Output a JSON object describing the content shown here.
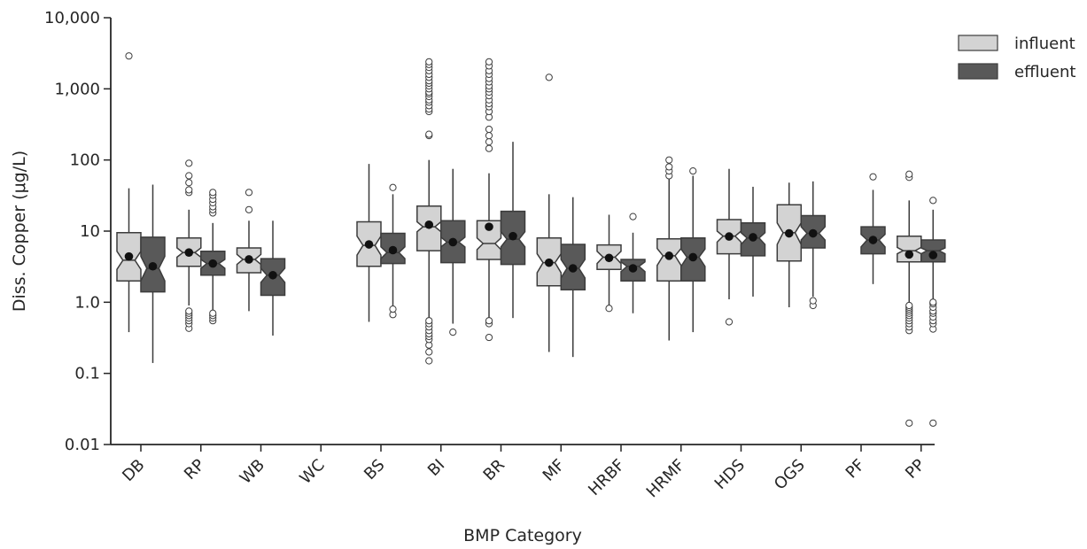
{
  "chart_data": {
    "type": "boxplot",
    "title": "",
    "xlabel": "BMP Category",
    "ylabel": "Diss. Copper (μg/L)",
    "yscale": "log",
    "ylim": [
      0.01,
      10000
    ],
    "yticks": [
      0.01,
      0.1,
      1,
      10,
      100,
      1000,
      10000
    ],
    "ytick_labels": [
      "0.01",
      "0.1",
      "1.0",
      "10",
      "100",
      "1,000",
      "10,000"
    ],
    "grid": false,
    "legend_position": "top-right",
    "categories": [
      "DB",
      "RP",
      "WB",
      "WC",
      "BS",
      "BI",
      "BR",
      "MF",
      "HRBF",
      "HRMF",
      "HDS",
      "OGS",
      "PF",
      "PP"
    ],
    "series": [
      {
        "name": "influent",
        "color": "#d3d3d3",
        "boxes": [
          {
            "q1": 2.0,
            "med": 3.9,
            "q3": 9.5,
            "notch": [
              2.9,
              5.2
            ],
            "mean": 4.4,
            "wlo": 0.38,
            "whi": 40,
            "fliers": [
              2900
            ]
          },
          {
            "q1": 3.2,
            "med": 5.0,
            "q3": 8.0,
            "notch": [
              4.3,
              5.8
            ],
            "mean": 5.0,
            "wlo": 0.9,
            "whi": 20,
            "fliers": [
              0.43,
              0.5,
              0.55,
              0.6,
              0.65,
              0.7,
              0.75,
              35,
              38,
              48,
              60,
              90
            ]
          },
          {
            "q1": 2.6,
            "med": 4.0,
            "q3": 5.8,
            "notch": [
              3.4,
              4.7
            ],
            "mean": 4.0,
            "wlo": 0.75,
            "whi": 14,
            "fliers": [
              20,
              35
            ]
          },
          null,
          {
            "q1": 3.2,
            "med": 6.3,
            "q3": 13.5,
            "notch": [
              4.6,
              8.5
            ],
            "mean": 6.5,
            "wlo": 0.53,
            "whi": 88,
            "fliers": []
          },
          {
            "q1": 5.3,
            "med": 11.5,
            "q3": 22.5,
            "notch": [
              9.8,
              13.5
            ],
            "mean": 12.3,
            "wlo": 0.6,
            "whi": 100,
            "fliers": [
              0.15,
              0.2,
              0.25,
              0.3,
              0.33,
              0.36,
              0.4,
              0.45,
              0.5,
              0.55,
              220,
              230,
              480,
              520,
              580,
              650,
              700,
              780,
              850,
              900,
              1000,
              1100,
              1200,
              1300,
              1450,
              1600,
              1800,
              2000,
              2200,
              2400
            ]
          },
          {
            "q1": 4.0,
            "med": 6.7,
            "q3": 14.0,
            "notch": [
              5.5,
              8.0
            ],
            "mean": 11.5,
            "wlo": 0.6,
            "whi": 65,
            "fliers": [
              0.32,
              0.5,
              0.55,
              145,
              180,
              220,
              270,
              400,
              480,
              560,
              620,
              700,
              800,
              900,
              1000,
              1100,
              1250,
              1400,
              1600,
              1800,
              2100,
              2400
            ]
          },
          {
            "q1": 1.7,
            "med": 3.6,
            "q3": 8.0,
            "notch": [
              2.6,
              4.8
            ],
            "mean": 3.6,
            "wlo": 0.2,
            "whi": 33,
            "fliers": [
              1450
            ]
          },
          {
            "q1": 2.9,
            "med": 4.3,
            "q3": 6.4,
            "notch": [
              3.5,
              5.2
            ],
            "mean": 4.2,
            "wlo": 0.82,
            "whi": 17,
            "fliers": [
              0.82
            ]
          },
          {
            "q1": 2.0,
            "med": 4.5,
            "q3": 7.8,
            "notch": [
              3.3,
              5.7
            ],
            "mean": 4.5,
            "wlo": 0.29,
            "whi": 55,
            "fliers": [
              60,
              70,
              80,
              100
            ]
          },
          {
            "q1": 4.8,
            "med": 8.5,
            "q3": 14.5,
            "notch": [
              7.0,
              10.0
            ],
            "mean": 8.4,
            "wlo": 1.1,
            "whi": 75,
            "fliers": [
              0.53
            ]
          },
          {
            "q1": 3.8,
            "med": 9.5,
            "q3": 23.5,
            "notch": [
              6.5,
              13.0
            ],
            "mean": 9.3,
            "wlo": 0.85,
            "whi": 48,
            "fliers": []
          },
          null,
          {
            "q1": 3.7,
            "med": 5.3,
            "q3": 8.5,
            "notch": [
              4.8,
              5.9
            ],
            "mean": 4.7,
            "wlo": 1.0,
            "whi": 27,
            "fliers": [
              0.02,
              0.4,
              0.45,
              0.5,
              0.55,
              0.6,
              0.65,
              0.7,
              0.75,
              0.8,
              0.85,
              0.9,
              57,
              63
            ]
          }
        ]
      },
      {
        "name": "effluent",
        "color": "#595959",
        "boxes": [
          {
            "q1": 1.4,
            "med": 3.0,
            "q3": 8.2,
            "notch": [
              2.0,
              4.4
            ],
            "mean": 3.2,
            "wlo": 0.14,
            "whi": 45,
            "fliers": []
          },
          {
            "q1": 2.4,
            "med": 3.5,
            "q3": 5.2,
            "notch": [
              3.0,
              4.0
            ],
            "mean": 3.5,
            "wlo": 0.75,
            "whi": 13,
            "fliers": [
              0.55,
              0.6,
              0.65,
              0.7,
              18,
              20,
              22,
              25,
              28,
              32,
              35
            ]
          },
          {
            "q1": 1.25,
            "med": 2.4,
            "q3": 4.1,
            "notch": [
              1.9,
              3.0
            ],
            "mean": 2.4,
            "wlo": 0.34,
            "whi": 14,
            "fliers": []
          },
          null,
          {
            "q1": 3.5,
            "med": 5.0,
            "q3": 9.3,
            "notch": [
              4.1,
              6.0
            ],
            "mean": 5.4,
            "wlo": 0.9,
            "whi": 33,
            "fliers": [
              0.67,
              0.8,
              41
            ]
          },
          {
            "q1": 3.6,
            "med": 7.0,
            "q3": 14.0,
            "notch": [
              6.0,
              8.2
            ],
            "mean": 7.0,
            "wlo": 0.5,
            "whi": 75,
            "fliers": [
              0.38
            ]
          },
          {
            "q1": 3.4,
            "med": 7.7,
            "q3": 19.0,
            "notch": [
              6.0,
              9.8
            ],
            "mean": 8.5,
            "wlo": 0.6,
            "whi": 180,
            "fliers": []
          },
          {
            "q1": 1.5,
            "med": 3.0,
            "q3": 6.5,
            "notch": [
              2.2,
              4.0
            ],
            "mean": 3.0,
            "wlo": 0.17,
            "whi": 30,
            "fliers": []
          },
          {
            "q1": 2.0,
            "med": 3.2,
            "q3": 4.0,
            "notch": [
              2.7,
              3.7
            ],
            "mean": 3.0,
            "wlo": 0.7,
            "whi": 9.5,
            "fliers": [
              16
            ]
          },
          {
            "q1": 2.0,
            "med": 4.3,
            "q3": 8.0,
            "notch": [
              3.2,
              5.6
            ],
            "mean": 4.3,
            "wlo": 0.38,
            "whi": 60,
            "fliers": [
              70
            ]
          },
          {
            "q1": 4.5,
            "med": 8.0,
            "q3": 13.0,
            "notch": [
              6.5,
              9.5
            ],
            "mean": 8.2,
            "wlo": 1.2,
            "whi": 42,
            "fliers": []
          },
          {
            "q1": 5.8,
            "med": 9.3,
            "q3": 16.5,
            "notch": [
              7.5,
              11.5
            ],
            "mean": 9.3,
            "wlo": 1.2,
            "whi": 50,
            "fliers": [
              0.9,
              1.05
            ]
          },
          {
            "q1": 4.8,
            "med": 7.5,
            "q3": 11.5,
            "notch": [
              6.0,
              9.0
            ],
            "mean": 7.5,
            "wlo": 1.8,
            "whi": 38,
            "fliers": [
              58
            ]
          },
          {
            "q1": 3.7,
            "med": 5.3,
            "q3": 7.5,
            "notch": [
              4.8,
              5.8
            ],
            "mean": 4.6,
            "wlo": 1.1,
            "whi": 20,
            "fliers": [
              0.02,
              0.42,
              0.5,
              0.55,
              0.62,
              0.7,
              0.75,
              0.85,
              0.95,
              1.0,
              27
            ]
          }
        ]
      }
    ]
  }
}
